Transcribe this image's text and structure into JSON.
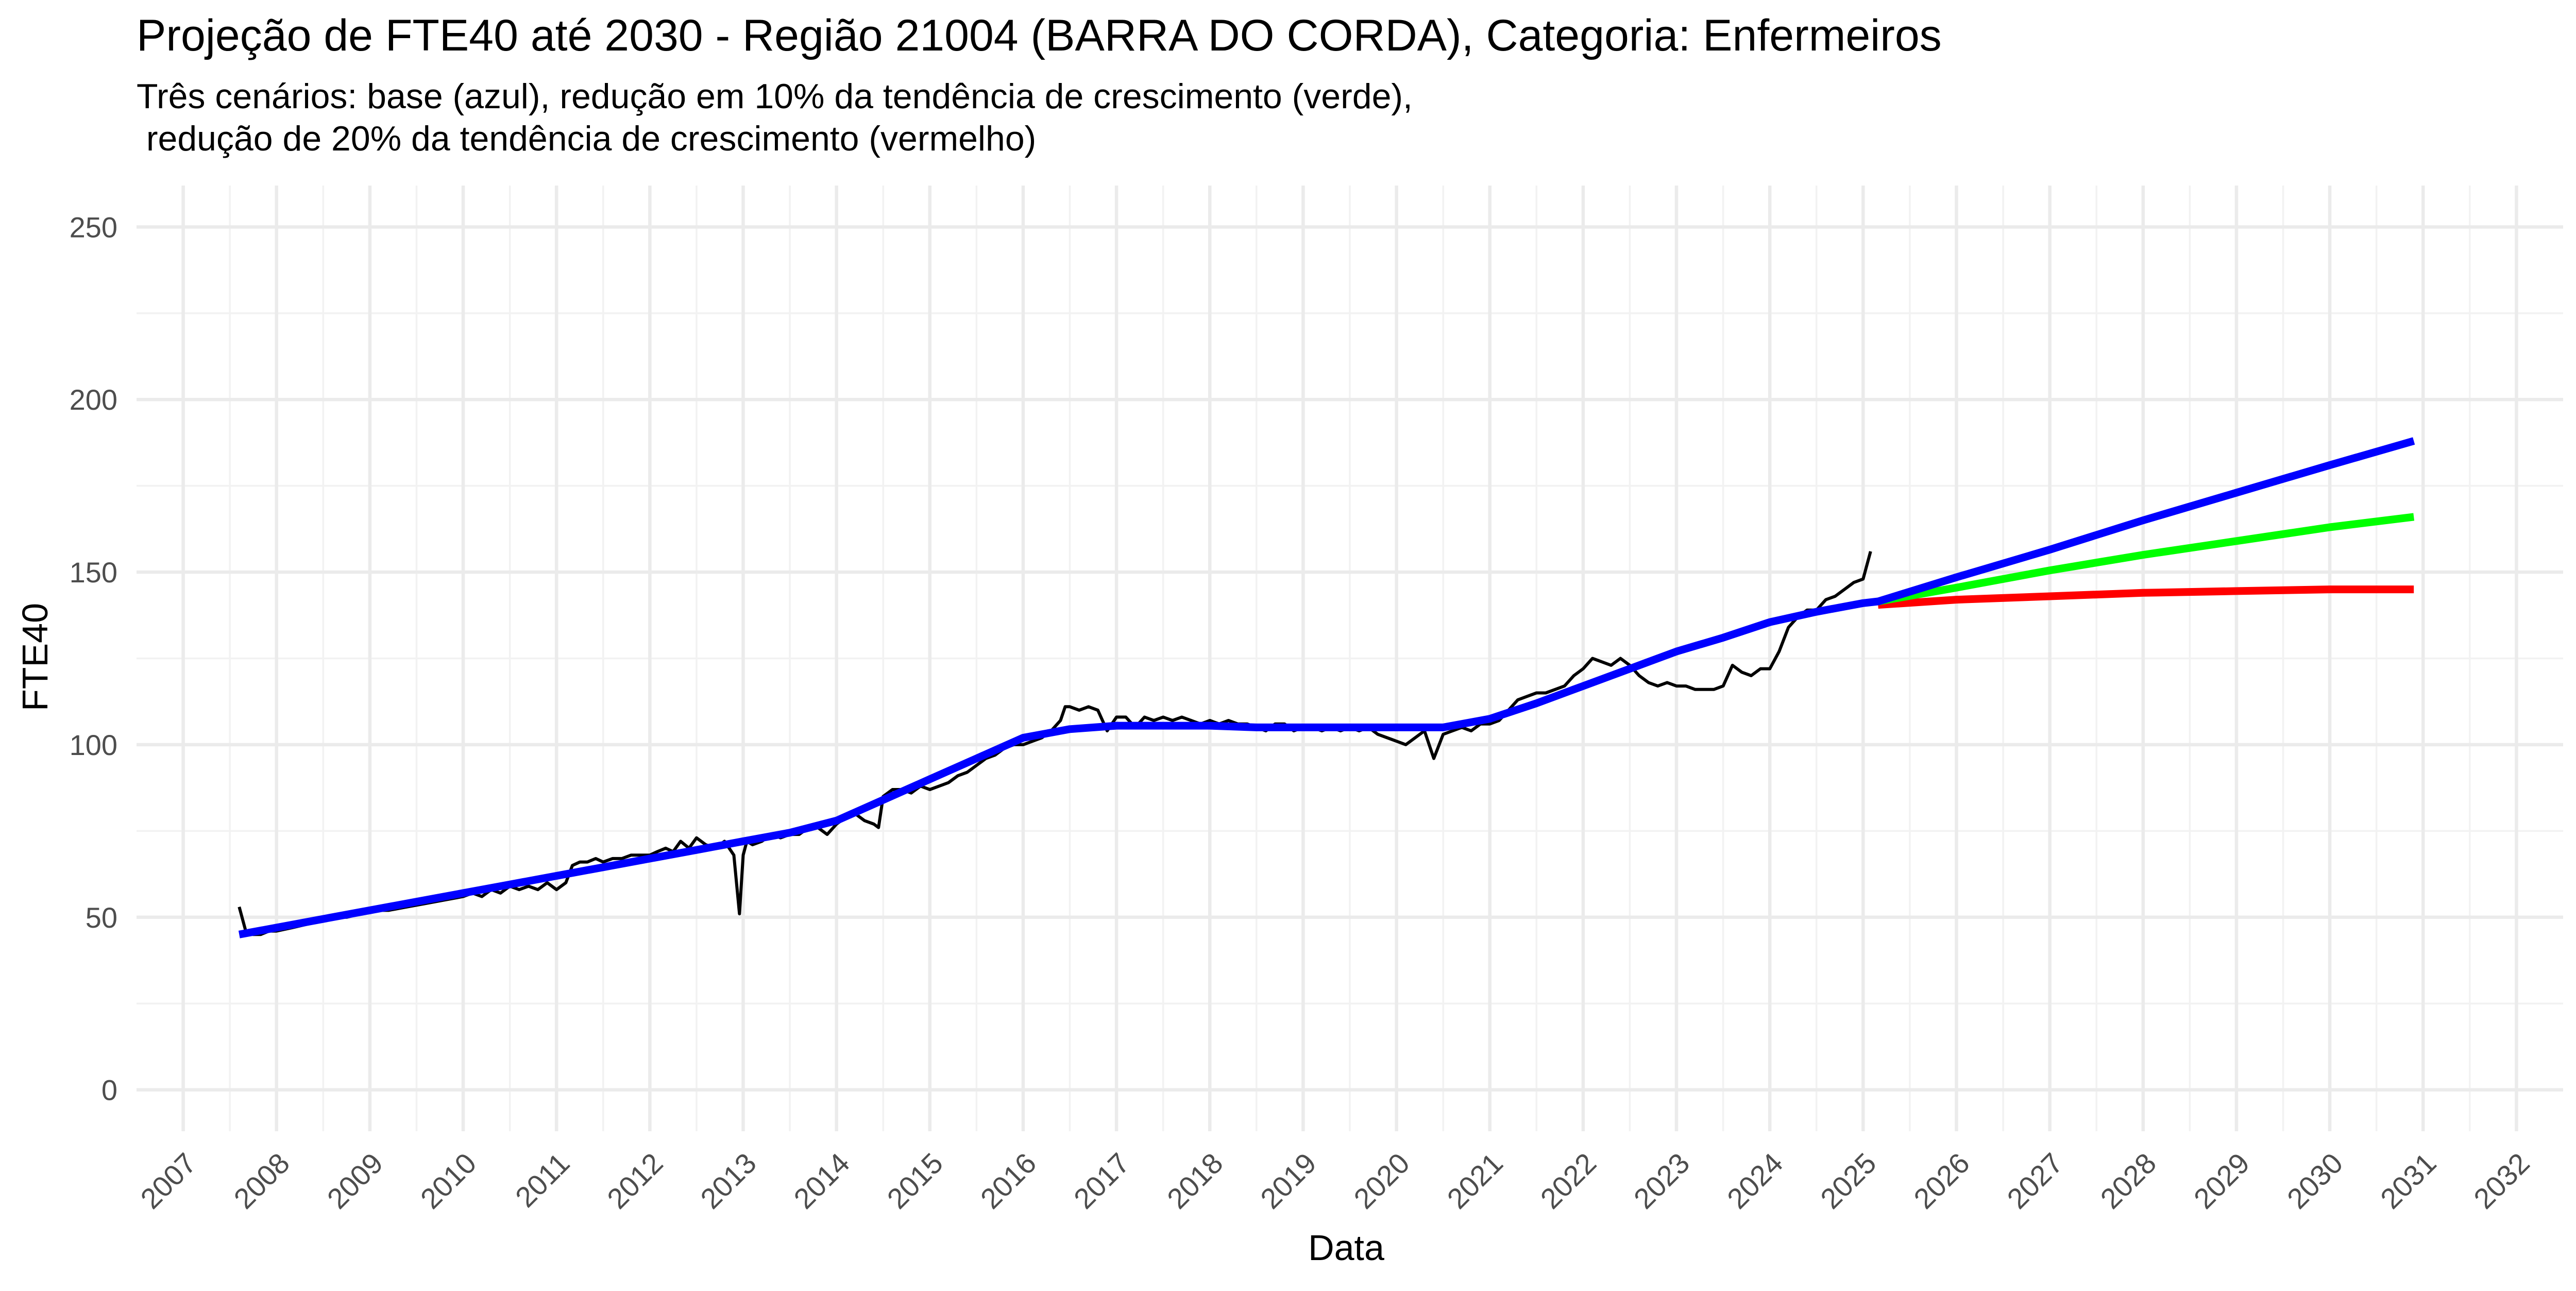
{
  "chart_data": {
    "type": "line",
    "title": "Projeção de FTE40 até 2030 - Região 21004 (BARRA DO CORDA), Categoria: Enfermeiros",
    "subtitle_lines": [
      "Três cenários: base (azul), redução em 10% da tendência de crescimento (verde),",
      " redução de 20% da tendência de crescimento (vermelho)"
    ],
    "xlabel": "Data",
    "ylabel": "FTE40",
    "xlim": [
      2006.5,
      2032.5
    ],
    "ylim": [
      -12,
      262
    ],
    "x_ticks": [
      "2007",
      "2008",
      "2009",
      "2010",
      "2011",
      "2012",
      "2013",
      "2014",
      "2015",
      "2016",
      "2017",
      "2018",
      "2019",
      "2020",
      "2021",
      "2022",
      "2023",
      "2024",
      "2025",
      "2026",
      "2027",
      "2028",
      "2029",
      "2030",
      "2031",
      "2032"
    ],
    "y_ticks": [
      "0",
      "50",
      "100",
      "150",
      "200",
      "250"
    ],
    "grid": true,
    "legend": "none",
    "colors": {
      "observed": "#000000",
      "base": "#0000ff",
      "reduction_10": "#00ff00",
      "reduction_20": "#ff0000"
    },
    "series": [
      {
        "key": "observed",
        "x": [
          2007.6,
          2007.67,
          2007.75,
          2007.83,
          2007.92,
          2008.0,
          2008.17,
          2008.33,
          2008.5,
          2008.6,
          2008.75,
          2008.9,
          2009.0,
          2009.2,
          2009.4,
          2009.6,
          2009.8,
          2010.0,
          2010.1,
          2010.2,
          2010.3,
          2010.4,
          2010.5,
          2010.6,
          2010.7,
          2010.8,
          2010.9,
          2011.0,
          2011.1,
          2011.17,
          2011.25,
          2011.33,
          2011.42,
          2011.5,
          2011.6,
          2011.7,
          2011.8,
          2011.9,
          2012.0,
          2012.08,
          2012.17,
          2012.25,
          2012.33,
          2012.42,
          2012.5,
          2012.6,
          2012.7,
          2012.8,
          2012.9,
          2012.96,
          2013.0,
          2013.04,
          2013.1,
          2013.2,
          2013.3,
          2013.4,
          2013.5,
          2013.6,
          2013.7,
          2013.8,
          2013.9,
          2014.0,
          2014.1,
          2014.2,
          2014.3,
          2014.4,
          2014.45,
          2014.5,
          2014.6,
          2014.7,
          2014.8,
          2014.9,
          2015.0,
          2015.1,
          2015.2,
          2015.3,
          2015.4,
          2015.5,
          2015.6,
          2015.7,
          2015.8,
          2015.9,
          2016.0,
          2016.1,
          2016.2,
          2016.3,
          2016.4,
          2016.45,
          2016.5,
          2016.6,
          2016.7,
          2016.8,
          2016.9,
          2016.95,
          2017.0,
          2017.1,
          2017.2,
          2017.3,
          2017.4,
          2017.5,
          2017.6,
          2017.7,
          2017.8,
          2017.9,
          2018.0,
          2018.1,
          2018.2,
          2018.3,
          2018.4,
          2018.5,
          2018.6,
          2018.7,
          2018.8,
          2018.9,
          2019.0,
          2019.1,
          2019.2,
          2019.3,
          2019.4,
          2019.5,
          2019.6,
          2019.7,
          2019.8,
          2019.9,
          2020.0,
          2020.1,
          2020.2,
          2020.3,
          2020.4,
          2020.5,
          2020.6,
          2020.7,
          2020.8,
          2020.9,
          2021.0,
          2021.1,
          2021.2,
          2021.3,
          2021.4,
          2021.5,
          2021.6,
          2021.7,
          2021.8,
          2021.9,
          2022.0,
          2022.1,
          2022.2,
          2022.3,
          2022.4,
          2022.5,
          2022.6,
          2022.7,
          2022.8,
          2022.9,
          2023.0,
          2023.1,
          2023.2,
          2023.3,
          2023.4,
          2023.5,
          2023.6,
          2023.7,
          2023.8,
          2023.9,
          2024.0,
          2024.1,
          2024.2,
          2024.3,
          2024.4,
          2024.5,
          2024.6,
          2024.7,
          2024.8,
          2024.9,
          2025.0,
          2025.08
        ],
        "y": [
          53,
          46,
          45,
          45,
          46,
          46,
          47,
          48,
          49,
          50,
          50,
          51,
          52,
          52,
          53,
          54,
          55,
          56,
          57,
          56,
          58,
          57,
          59,
          58,
          59,
          58,
          60,
          58,
          60,
          65,
          66,
          66,
          67,
          66,
          67,
          67,
          68,
          68,
          68,
          69,
          70,
          69,
          72,
          70,
          73,
          71,
          70,
          72,
          68,
          51,
          68,
          72,
          71,
          72,
          74,
          73,
          74,
          74,
          76,
          76,
          74,
          77,
          79,
          80,
          78,
          77,
          76,
          85,
          87,
          87,
          86,
          88,
          87,
          88,
          89,
          91,
          92,
          94,
          96,
          97,
          99,
          100,
          100,
          101,
          102,
          104,
          107,
          111,
          111,
          110,
          111,
          110,
          104,
          106,
          108,
          108,
          105,
          108,
          107,
          108,
          107,
          108,
          107,
          106,
          107,
          106,
          107,
          106,
          106,
          105,
          104,
          106,
          106,
          104,
          105,
          105,
          104,
          105,
          104,
          105,
          104,
          105,
          103,
          102,
          101,
          100,
          102,
          104,
          96,
          103,
          104,
          105,
          104,
          106,
          106,
          107,
          110,
          113,
          114,
          115,
          115,
          116,
          117,
          120,
          122,
          125,
          124,
          123,
          125,
          123,
          120,
          118,
          117,
          118,
          117,
          117,
          116,
          116,
          116,
          117,
          123,
          121,
          120,
          122,
          122,
          127,
          134,
          137,
          139,
          139,
          142,
          143,
          145,
          147,
          148,
          156
        ]
      },
      {
        "key": "base",
        "x": [
          2007.6,
          2008.5,
          2009.5,
          2010.5,
          2011.5,
          2012.5,
          2013.0,
          2013.5,
          2014.0,
          2014.5,
          2015.0,
          2015.5,
          2016.0,
          2016.5,
          2017.0,
          2017.5,
          2018.0,
          2018.5,
          2019.0,
          2019.5,
          2020.0,
          2020.5,
          2021.0,
          2021.5,
          2022.0,
          2022.5,
          2023.0,
          2023.5,
          2024.0,
          2024.5,
          2025.0,
          2025.16,
          2026.0,
          2027.0,
          2028.0,
          2029.0,
          2030.0,
          2030.9
        ],
        "y": [
          45,
          49.5,
          54.5,
          59.5,
          64.5,
          69.5,
          72.0,
          74.5,
          78.0,
          84.0,
          90.0,
          96.0,
          102.0,
          104.5,
          105.5,
          105.5,
          105.5,
          105.0,
          105.0,
          105.0,
          105.0,
          105.0,
          107.5,
          112.0,
          117.0,
          122.0,
          127.0,
          131.0,
          135.5,
          138.5,
          141.0,
          141.5,
          148.5,
          156.5,
          165.0,
          173.0,
          181.0,
          188.0
        ]
      },
      {
        "key": "reduction_10",
        "x": [
          2025.16,
          2026.0,
          2027.0,
          2028.0,
          2029.0,
          2030.0,
          2030.9
        ],
        "y": [
          141.5,
          145.5,
          150.5,
          155.0,
          159.0,
          163.0,
          166.0
        ]
      },
      {
        "key": "reduction_20",
        "x": [
          2025.16,
          2026.0,
          2027.0,
          2028.0,
          2029.0,
          2030.0,
          2030.9
        ],
        "y": [
          140.5,
          142.0,
          143.0,
          144.0,
          144.5,
          145.0,
          145.0
        ]
      }
    ]
  }
}
